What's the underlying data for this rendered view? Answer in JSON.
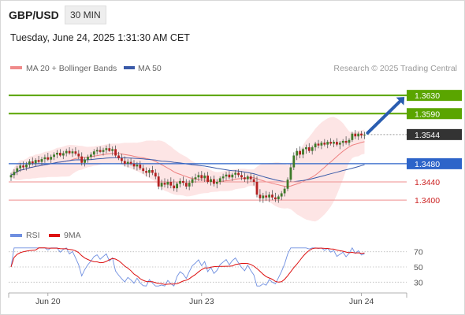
{
  "header": {
    "symbol": "GBP/USD",
    "timeframe": "30 MIN",
    "datetime": "Tuesday, June 24, 2025 1:31:30 AM CET",
    "credit": "Research © 2025 Trading Central"
  },
  "colors": {
    "green": "#5aa500",
    "blue": "#2d64c9",
    "red_line": "#f2a3a3",
    "red_text": "#cc2222",
    "band_fill": "#fde0e0",
    "ma20": "#ee8080",
    "ma50": "#3a5aa8",
    "arrow": "#2a5db0",
    "candle_up": "#3e7a2a",
    "candle_down": "#b32020",
    "price_box": "#333333",
    "rsi": "#6f8fe0",
    "rsi_ma": "#dd1111"
  },
  "chart_data": [
    {
      "type": "candlestick",
      "legend": [
        {
          "name": "MA 20 + Bollinger Bands",
          "color": "#f08a8a"
        },
        {
          "name": "MA 50",
          "color": "#3a5aa8"
        }
      ],
      "x_labels": [
        {
          "label": "Jun 20",
          "bar": 12
        },
        {
          "label": "Jun 23",
          "bar": 62
        },
        {
          "label": "Jun 24",
          "bar": 114
        }
      ],
      "y_range": [
        1.3338,
        1.367
      ],
      "levels": [
        {
          "value": 1.363,
          "label": "1.3630",
          "kind": "resistance"
        },
        {
          "value": 1.359,
          "label": "1.3590",
          "kind": "resistance"
        },
        {
          "value": 1.3544,
          "label": "1.3544",
          "kind": "last_price"
        },
        {
          "value": 1.348,
          "label": "1.3480",
          "kind": "pivot"
        },
        {
          "value": 1.344,
          "label": "1.3440",
          "kind": "support"
        },
        {
          "value": 1.34,
          "label": "1.3400",
          "kind": "support"
        }
      ],
      "target_arrow": {
        "from_bar": 116,
        "from_value": 1.3544,
        "to_bar": 128,
        "to_value": 1.363
      },
      "candles_ohlc": [
        [
          1.345,
          1.346,
          1.3442,
          1.3455
        ],
        [
          1.3455,
          1.3468,
          1.3448,
          1.3462
        ],
        [
          1.3462,
          1.3475,
          1.3455,
          1.347
        ],
        [
          1.347,
          1.3482,
          1.3462,
          1.3476
        ],
        [
          1.3476,
          1.3485,
          1.3466,
          1.3472
        ],
        [
          1.3472,
          1.3484,
          1.3465,
          1.3478
        ],
        [
          1.3478,
          1.349,
          1.347,
          1.3485
        ],
        [
          1.3485,
          1.3494,
          1.3476,
          1.3481
        ],
        [
          1.3481,
          1.3492,
          1.3474,
          1.3488
        ],
        [
          1.3488,
          1.3497,
          1.348,
          1.3484
        ],
        [
          1.3484,
          1.3495,
          1.3477,
          1.349
        ],
        [
          1.349,
          1.35,
          1.3482,
          1.3494
        ],
        [
          1.3494,
          1.3504,
          1.3486,
          1.3489
        ],
        [
          1.3489,
          1.35,
          1.3481,
          1.3495
        ],
        [
          1.3495,
          1.3505,
          1.3488,
          1.35
        ],
        [
          1.35,
          1.351,
          1.3492,
          1.3504
        ],
        [
          1.3504,
          1.3512,
          1.3495,
          1.3498
        ],
        [
          1.3498,
          1.3508,
          1.349,
          1.3503
        ],
        [
          1.3503,
          1.3513,
          1.3496,
          1.3508
        ],
        [
          1.3508,
          1.3516,
          1.35,
          1.3503
        ],
        [
          1.3503,
          1.3513,
          1.3495,
          1.3507
        ],
        [
          1.3507,
          1.3516,
          1.3498,
          1.3502
        ],
        [
          1.3502,
          1.351,
          1.349,
          1.3496
        ],
        [
          1.3496,
          1.3505,
          1.3476,
          1.3482
        ],
        [
          1.3482,
          1.3494,
          1.3474,
          1.3489
        ],
        [
          1.3489,
          1.35,
          1.3482,
          1.3495
        ],
        [
          1.3495,
          1.3505,
          1.3488,
          1.35
        ],
        [
          1.35,
          1.3512,
          1.3494,
          1.3507
        ],
        [
          1.3507,
          1.3516,
          1.35,
          1.351
        ],
        [
          1.351,
          1.3518,
          1.3503,
          1.3506
        ],
        [
          1.3506,
          1.3515,
          1.3498,
          1.351
        ],
        [
          1.351,
          1.352,
          1.3503,
          1.3514
        ],
        [
          1.3514,
          1.3524,
          1.3506,
          1.3508
        ],
        [
          1.3508,
          1.3518,
          1.3498,
          1.3512
        ],
        [
          1.3512,
          1.352,
          1.3494,
          1.3498
        ],
        [
          1.3498,
          1.3506,
          1.3488,
          1.3492
        ],
        [
          1.3492,
          1.3502,
          1.348,
          1.3486
        ],
        [
          1.3486,
          1.3496,
          1.3474,
          1.348
        ],
        [
          1.348,
          1.349,
          1.3472,
          1.3484
        ],
        [
          1.3484,
          1.3492,
          1.3476,
          1.348
        ],
        [
          1.348,
          1.3488,
          1.3468,
          1.3474
        ],
        [
          1.3474,
          1.3484,
          1.3465,
          1.3478
        ],
        [
          1.3478,
          1.3486,
          1.3466,
          1.347
        ],
        [
          1.347,
          1.3478,
          1.3458,
          1.3464
        ],
        [
          1.3464,
          1.3472,
          1.3452,
          1.346
        ],
        [
          1.346,
          1.347,
          1.345,
          1.3466
        ],
        [
          1.3466,
          1.3475,
          1.3455,
          1.346
        ],
        [
          1.346,
          1.3468,
          1.3446,
          1.3452
        ],
        [
          1.3452,
          1.346,
          1.3424,
          1.343
        ],
        [
          1.343,
          1.3445,
          1.3422,
          1.3438
        ],
        [
          1.3438,
          1.3448,
          1.3428,
          1.3434
        ],
        [
          1.3434,
          1.3446,
          1.3426,
          1.344
        ],
        [
          1.344,
          1.345,
          1.3426,
          1.3432
        ],
        [
          1.3432,
          1.3446,
          1.342,
          1.3426
        ],
        [
          1.3426,
          1.344,
          1.3418,
          1.3436
        ],
        [
          1.3436,
          1.3448,
          1.3428,
          1.3442
        ],
        [
          1.3442,
          1.3452,
          1.3432,
          1.3438
        ],
        [
          1.3438,
          1.3446,
          1.3424,
          1.343
        ],
        [
          1.343,
          1.3444,
          1.3422,
          1.3438
        ],
        [
          1.3438,
          1.3452,
          1.343,
          1.3446
        ],
        [
          1.3446,
          1.3458,
          1.3438,
          1.345
        ],
        [
          1.345,
          1.3462,
          1.3442,
          1.3455
        ],
        [
          1.3455,
          1.3464,
          1.3442,
          1.3448
        ],
        [
          1.3448,
          1.346,
          1.344,
          1.3454
        ],
        [
          1.3454,
          1.3462,
          1.3436,
          1.344
        ],
        [
          1.344,
          1.3452,
          1.3432,
          1.3446
        ],
        [
          1.3446,
          1.3454,
          1.343,
          1.3436
        ],
        [
          1.3436,
          1.3446,
          1.3426,
          1.344
        ],
        [
          1.344,
          1.3452,
          1.3434,
          1.3448
        ],
        [
          1.3448,
          1.3458,
          1.344,
          1.3452
        ],
        [
          1.3452,
          1.3462,
          1.3444,
          1.3456
        ],
        [
          1.3456,
          1.3464,
          1.3446,
          1.345
        ],
        [
          1.345,
          1.346,
          1.3442,
          1.3456
        ],
        [
          1.3456,
          1.3466,
          1.3448,
          1.346
        ],
        [
          1.346,
          1.3468,
          1.345,
          1.3455
        ],
        [
          1.3455,
          1.3464,
          1.3444,
          1.345
        ],
        [
          1.345,
          1.346,
          1.344,
          1.3446
        ],
        [
          1.3446,
          1.3456,
          1.3436,
          1.3452
        ],
        [
          1.3452,
          1.346,
          1.344,
          1.3446
        ],
        [
          1.3446,
          1.3456,
          1.3432,
          1.344
        ],
        [
          1.344,
          1.3452,
          1.3406,
          1.3412
        ],
        [
          1.3412,
          1.3424,
          1.3396,
          1.3404
        ],
        [
          1.3404,
          1.3416,
          1.3394,
          1.341
        ],
        [
          1.341,
          1.342,
          1.3398,
          1.3406
        ],
        [
          1.3406,
          1.3418,
          1.3396,
          1.3412
        ],
        [
          1.3412,
          1.3422,
          1.34,
          1.3406
        ],
        [
          1.3406,
          1.3416,
          1.3396,
          1.3402
        ],
        [
          1.3402,
          1.3412,
          1.3394,
          1.3408
        ],
        [
          1.3408,
          1.342,
          1.34,
          1.3415
        ],
        [
          1.3415,
          1.343,
          1.3408,
          1.3425
        ],
        [
          1.3425,
          1.345,
          1.342,
          1.3445
        ],
        [
          1.3445,
          1.348,
          1.344,
          1.3472
        ],
        [
          1.3472,
          1.3505,
          1.3466,
          1.3498
        ],
        [
          1.3498,
          1.3514,
          1.3488,
          1.3508
        ],
        [
          1.3508,
          1.3518,
          1.3492,
          1.35
        ],
        [
          1.35,
          1.3515,
          1.3492,
          1.3512
        ],
        [
          1.3512,
          1.3522,
          1.3502,
          1.3516
        ],
        [
          1.3516,
          1.3525,
          1.3504,
          1.3508
        ],
        [
          1.3508,
          1.352,
          1.35,
          1.3516
        ],
        [
          1.3516,
          1.3528,
          1.3508,
          1.3524
        ],
        [
          1.3524,
          1.3532,
          1.3514,
          1.352
        ],
        [
          1.352,
          1.353,
          1.3512,
          1.3526
        ],
        [
          1.3526,
          1.3534,
          1.3518,
          1.3522
        ],
        [
          1.3522,
          1.3532,
          1.3514,
          1.3528
        ],
        [
          1.3528,
          1.3536,
          1.352,
          1.3524
        ],
        [
          1.3524,
          1.3532,
          1.3516,
          1.3528
        ],
        [
          1.3528,
          1.3536,
          1.3518,
          1.3522
        ],
        [
          1.3522,
          1.353,
          1.3512,
          1.3526
        ],
        [
          1.3526,
          1.3534,
          1.3518,
          1.353
        ],
        [
          1.353,
          1.354,
          1.3522,
          1.3526
        ],
        [
          1.3526,
          1.3536,
          1.352,
          1.3532
        ],
        [
          1.3532,
          1.355,
          1.3528,
          1.3546
        ],
        [
          1.3546,
          1.3554,
          1.3534,
          1.354
        ],
        [
          1.354,
          1.355,
          1.3532,
          1.3546
        ],
        [
          1.3546,
          1.3552,
          1.3536,
          1.3542
        ],
        [
          1.3542,
          1.355,
          1.3534,
          1.3544
        ]
      ]
    },
    {
      "type": "line",
      "legend": [
        {
          "name": "RSI",
          "color": "#6f8fe0"
        },
        {
          "name": "9MA",
          "color": "#dd1111"
        }
      ],
      "y_ticks": [
        70,
        50,
        30
      ],
      "y_range": [
        20,
        80
      ]
    }
  ]
}
